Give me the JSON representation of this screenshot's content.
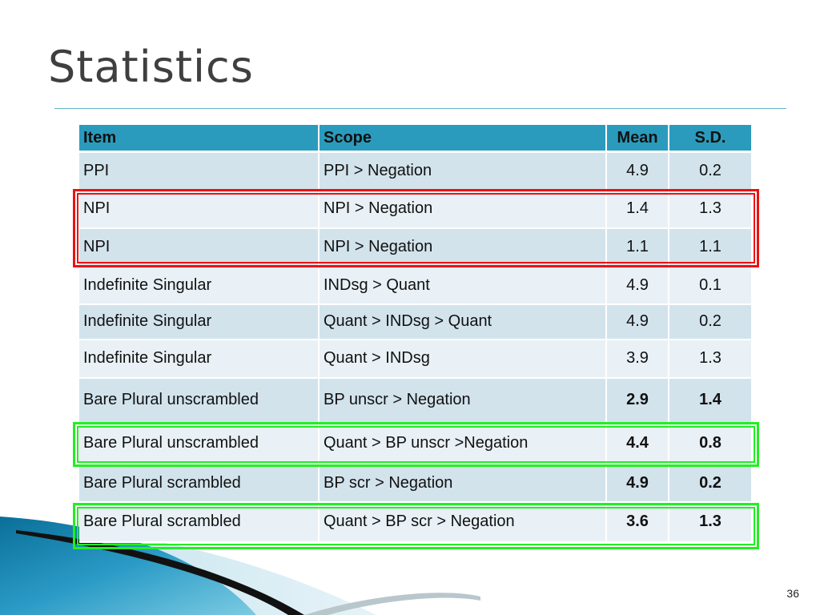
{
  "slide": {
    "title": "Statistics",
    "page_number": "36"
  },
  "table": {
    "headers": [
      "Item",
      "Scope",
      "Mean",
      "S.D."
    ],
    "rows": [
      {
        "item": "PPI",
        "scope": "PPI > Negation",
        "mean": "4.9",
        "sd": "0.2",
        "bold": false
      },
      {
        "item": "NPI",
        "scope": "NPI > Negation",
        "mean": "1.4",
        "sd": "1.3",
        "bold": false
      },
      {
        "item": "NPI",
        "scope": "NPI > Negation",
        "mean": "1.1",
        "sd": "1.1",
        "bold": false
      },
      {
        "item": "Indefinite Singular",
        "scope": "INDsg > Quant",
        "mean": "4.9",
        "sd": "0.1",
        "bold": false
      },
      {
        "item": "Indefinite Singular",
        "scope": "Quant > INDsg > Quant",
        "mean": "4.9",
        "sd": "0.2",
        "bold": false
      },
      {
        "item": "Indefinite Singular",
        "scope": "Quant > INDsg",
        "mean": "3.9",
        "sd": "1.3",
        "bold": false
      },
      {
        "item": "Bare Plural unscrambled",
        "scope": "BP unscr > Negation",
        "mean": "2.9",
        "sd": "1.4",
        "bold": true
      },
      {
        "item": "Bare Plural unscrambled",
        "scope": "Quant > BP unscr >Negation",
        "mean": "4.4",
        "sd": "0.8",
        "bold": true
      },
      {
        "item": "Bare Plural scrambled",
        "scope": "BP scr > Negation",
        "mean": "4.9",
        "sd": "0.2",
        "bold": true
      },
      {
        "item": "Bare Plural scrambled",
        "scope": "Quant > BP scr > Negation",
        "mean": "3.6",
        "sd": "1.3",
        "bold": true
      }
    ]
  },
  "highlights": {
    "red_color": "#ee1111",
    "green_color": "#22ee22"
  },
  "colors": {
    "header_bg": "#2a9bbd",
    "row_odd": "#d2e3ec",
    "row_even": "#e9f1f6",
    "swoosh_dark": "#0f7fa8",
    "swoosh_light": "#79c6de"
  }
}
